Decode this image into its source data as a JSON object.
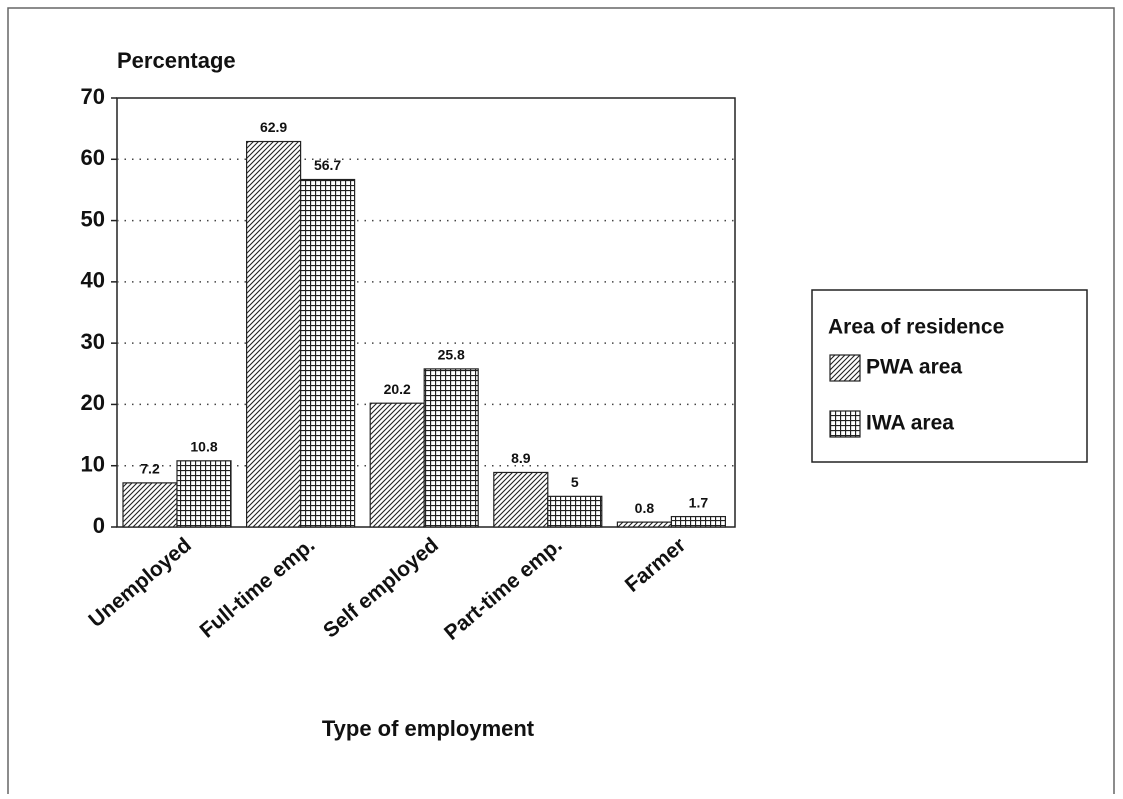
{
  "chart_data": {
    "type": "bar",
    "y_label": "Percentage",
    "x_label": "Type of employment",
    "categories": [
      "Unemployed",
      "Full-time emp.",
      "Self employed",
      "Part-time emp.",
      "Farmer"
    ],
    "series": [
      {
        "name": "PWA area",
        "color": "#222222",
        "values": [
          7.2,
          62.9,
          20.2,
          8.9,
          0.8
        ]
      },
      {
        "name": "IWA area",
        "color": "#222222",
        "values": [
          10.8,
          56.7,
          25.8,
          5,
          1.7
        ]
      }
    ],
    "legend_title": "Area of residence",
    "legend": "right",
    "ylim": [
      0,
      70
    ],
    "yticks": [
      0,
      10,
      20,
      30,
      40,
      50,
      60,
      70
    ],
    "grid": true
  }
}
